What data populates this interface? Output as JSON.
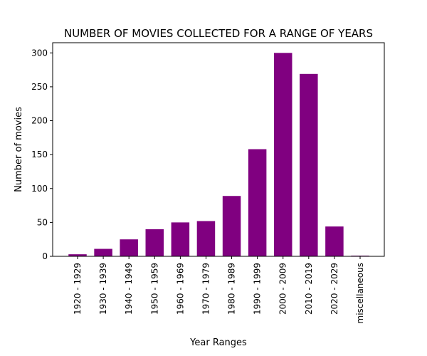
{
  "chart_data": {
    "type": "bar",
    "title": "NUMBER OF MOVIES COLLECTED FOR A RANGE OF YEARS",
    "xlabel": "Year Ranges",
    "ylabel": "Number of movies",
    "categories": [
      "1920 - 1929",
      "1930 - 1939",
      "1940 - 1949",
      "1950 - 1959",
      "1960 - 1969",
      "1970 - 1979",
      "1980 - 1989",
      "1990 - 1999",
      "2000 - 2009",
      "2010 - 2019",
      "2020 - 2029",
      "miscellaneous"
    ],
    "values": [
      3,
      11,
      25,
      40,
      50,
      52,
      89,
      158,
      300,
      269,
      44,
      1
    ],
    "ylim": [
      0,
      315
    ],
    "yticks": [
      0,
      50,
      100,
      150,
      200,
      250,
      300
    ],
    "bar_color": "#800080",
    "grid": false
  }
}
